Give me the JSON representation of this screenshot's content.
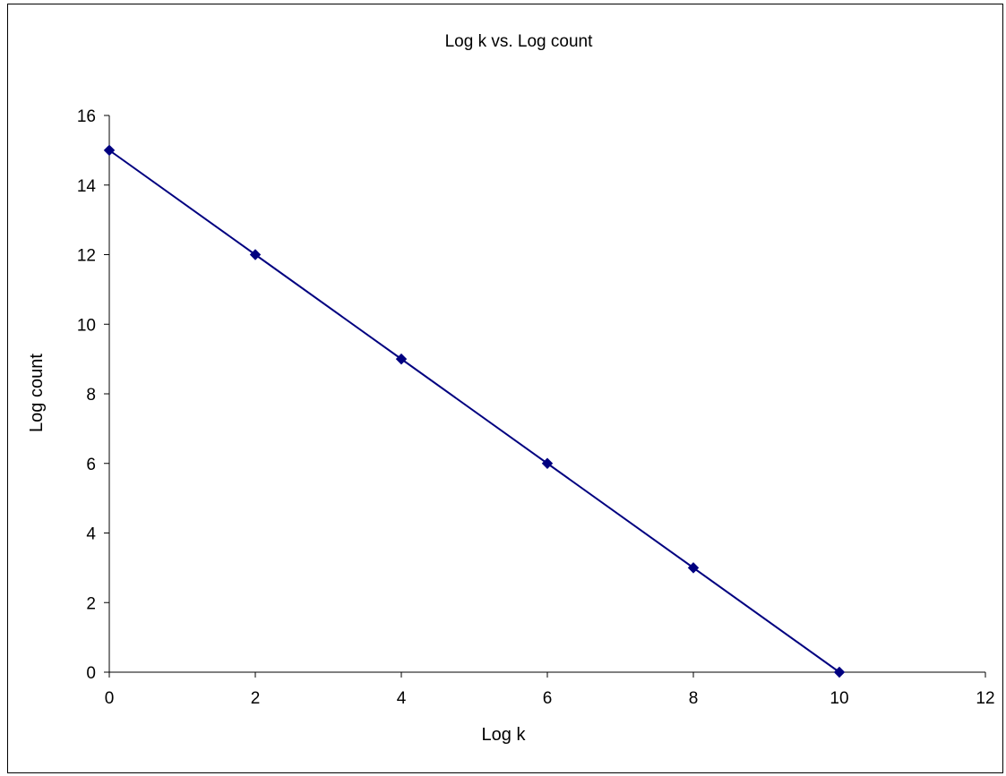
{
  "chart_data": {
    "type": "line",
    "title": "Log k vs. Log count",
    "xlabel": "Log k",
    "ylabel": "Log count",
    "xlim": [
      0,
      12
    ],
    "ylim": [
      0,
      16
    ],
    "xticks": [
      "0",
      "2",
      "4",
      "6",
      "8",
      "10",
      "12"
    ],
    "yticks": [
      "0",
      "2",
      "4",
      "6",
      "8",
      "10",
      "12",
      "14",
      "16"
    ],
    "grid": false,
    "legend": "none",
    "marker": "diamond",
    "series": [
      {
        "x": [
          0,
          2,
          4,
          6,
          8,
          10
        ],
        "y": [
          15,
          12,
          9,
          6,
          3,
          0
        ],
        "color": "#000080"
      }
    ]
  }
}
